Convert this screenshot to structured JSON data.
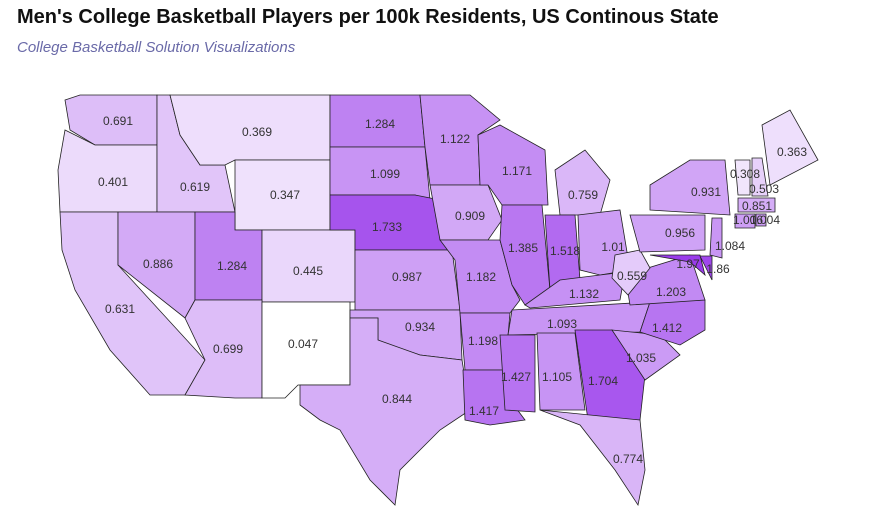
{
  "chart_data": {
    "type": "choropleth",
    "title": "Men's College Basketball Players per 100k Residents, US Continous State",
    "subtitle": "College Basketball Solution Visualizations",
    "color_range": [
      "#ffffff",
      "#9a3ceb"
    ],
    "values": [
      0.691,
      0.401,
      0.631,
      0.619,
      0.886,
      0.369,
      0.347,
      1.284,
      0.445,
      0.699,
      0.047,
      1.284,
      1.099,
      1.733,
      0.987,
      0.934,
      0.844,
      1.122,
      0.909,
      1.182,
      1.198,
      1.417,
      1.171,
      1.385,
      0.759,
      1.518,
      1.01,
      1.132,
      1.093,
      1.427,
      1.105,
      1.704,
      0.774,
      1.035,
      1.412,
      1.203,
      0.559,
      0.956,
      0.931,
      1.97,
      1.86,
      1.084,
      0.308,
      0.503,
      0.363,
      0.851,
      1.006,
      1.004
    ]
  }
}
